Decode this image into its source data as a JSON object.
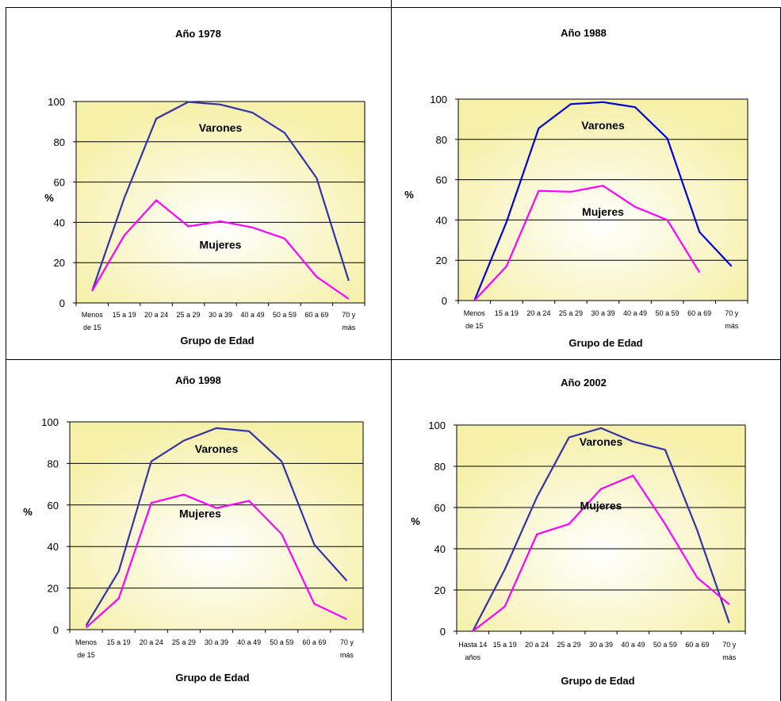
{
  "chart_data": [
    {
      "type": "line",
      "title": "Año 1978",
      "xlabel": "Grupo de Edad",
      "ylabel": "%",
      "ylim": [
        0,
        100
      ],
      "yticks": [
        "0",
        "20",
        "40",
        "60",
        "80",
        "100"
      ],
      "grid": true,
      "categories": [
        [
          "Menos",
          "de 15"
        ],
        [
          "15 a 19"
        ],
        [
          "20 a 24"
        ],
        [
          "25 a 29"
        ],
        [
          "30 a 39"
        ],
        [
          "40 a 49"
        ],
        [
          "50 a 59"
        ],
        [
          "60 a 69"
        ],
        [
          "70 y",
          "más"
        ]
      ],
      "series": [
        {
          "name": "Varones",
          "color": "#3333AA",
          "values": [
            6,
            52,
            91.5,
            99.8,
            98.5,
            94.5,
            84.5,
            62,
            11
          ]
        },
        {
          "name": "Mujeres",
          "color": "#FF00FF",
          "values": [
            6,
            33.5,
            51,
            38,
            40.5,
            37.5,
            32,
            13,
            2
          ]
        }
      ],
      "annotations": [
        {
          "text": "Varones",
          "x": 4,
          "y": 87
        },
        {
          "text": "Mujeres",
          "x": 4,
          "y": 29
        }
      ]
    },
    {
      "type": "line",
      "title": "Año 1988",
      "xlabel": "Grupo de Edad",
      "ylabel": "%",
      "ylim": [
        0,
        100
      ],
      "yticks": [
        "0",
        "20",
        "40",
        "60",
        "80",
        "100"
      ],
      "grid": true,
      "categories": [
        [
          "Menos",
          "de 15"
        ],
        [
          "15 a 19"
        ],
        [
          "20 a 24"
        ],
        [
          "25 a 29"
        ],
        [
          "30 a 39"
        ],
        [
          "40 a 49"
        ],
        [
          "50 a 59"
        ],
        [
          "60 a 69"
        ],
        [
          "70 y",
          "más"
        ]
      ],
      "series": [
        {
          "name": "Varones",
          "color": "#0000DD",
          "values": [
            0,
            39,
            85.5,
            97.5,
            98.5,
            96,
            80.5,
            34,
            17
          ]
        },
        {
          "name": "Mujeres",
          "color": "#FF00FF",
          "values": [
            0,
            17,
            54.5,
            54,
            57,
            46.5,
            40,
            14,
            null
          ]
        }
      ],
      "annotations": [
        {
          "text": "Varones",
          "x": 4,
          "y": 87
        },
        {
          "text": "Mujeres",
          "x": 4,
          "y": 44
        }
      ]
    },
    {
      "type": "line",
      "title": "Año 1998",
      "xlabel": "Grupo de Edad",
      "ylabel": "%",
      "ylim": [
        0,
        100
      ],
      "yticks": [
        "0",
        "20",
        "40",
        "60",
        "80",
        "100"
      ],
      "grid": true,
      "categories": [
        [
          "Menos",
          "de 15"
        ],
        [
          "15 a 19"
        ],
        [
          "20 a 24"
        ],
        [
          "25 a 29"
        ],
        [
          "30 a 39"
        ],
        [
          "40 a 49"
        ],
        [
          "50 a 59"
        ],
        [
          "60 a 69"
        ],
        [
          "70 y",
          "más"
        ]
      ],
      "series": [
        {
          "name": "Varones",
          "color": "#3333AA",
          "values": [
            2,
            28,
            81,
            91,
            97,
            95.5,
            81,
            41,
            23.5
          ]
        },
        {
          "name": "Mujeres",
          "color": "#FF00FF",
          "values": [
            1,
            15,
            61,
            65,
            58.5,
            62,
            46,
            12.5,
            5
          ]
        }
      ],
      "annotations": [
        {
          "text": "Varones",
          "x": 4,
          "y": 87
        },
        {
          "text": "Mujeres",
          "x": 3.5,
          "y": 56
        }
      ]
    },
    {
      "type": "line",
      "title": "Año 2002",
      "xlabel": "Grupo de Edad",
      "ylabel": "%",
      "ylim": [
        0,
        100
      ],
      "yticks": [
        "0",
        "20",
        "40",
        "60",
        "80",
        "100"
      ],
      "grid": true,
      "categories": [
        [
          "Hasta 14",
          "años"
        ],
        [
          "15 a 19"
        ],
        [
          "20 a 24"
        ],
        [
          "25 a 29"
        ],
        [
          "30 a 39"
        ],
        [
          "40 a 49"
        ],
        [
          "50 a 59"
        ],
        [
          "60 a 69"
        ],
        [
          "70 y",
          "más"
        ]
      ],
      "series": [
        {
          "name": "Varones",
          "color": "#3333AA",
          "values": [
            0,
            30,
            65,
            94,
            98.5,
            92,
            88,
            49,
            4
          ]
        },
        {
          "name": "Mujeres",
          "color": "#FF00FF",
          "values": [
            0,
            12,
            47,
            52,
            69,
            75.5,
            52,
            26,
            13
          ]
        }
      ],
      "annotations": [
        {
          "text": "Varones",
          "x": 4,
          "y": 92
        },
        {
          "text": "Mujeres",
          "x": 4,
          "y": 61
        }
      ]
    }
  ]
}
